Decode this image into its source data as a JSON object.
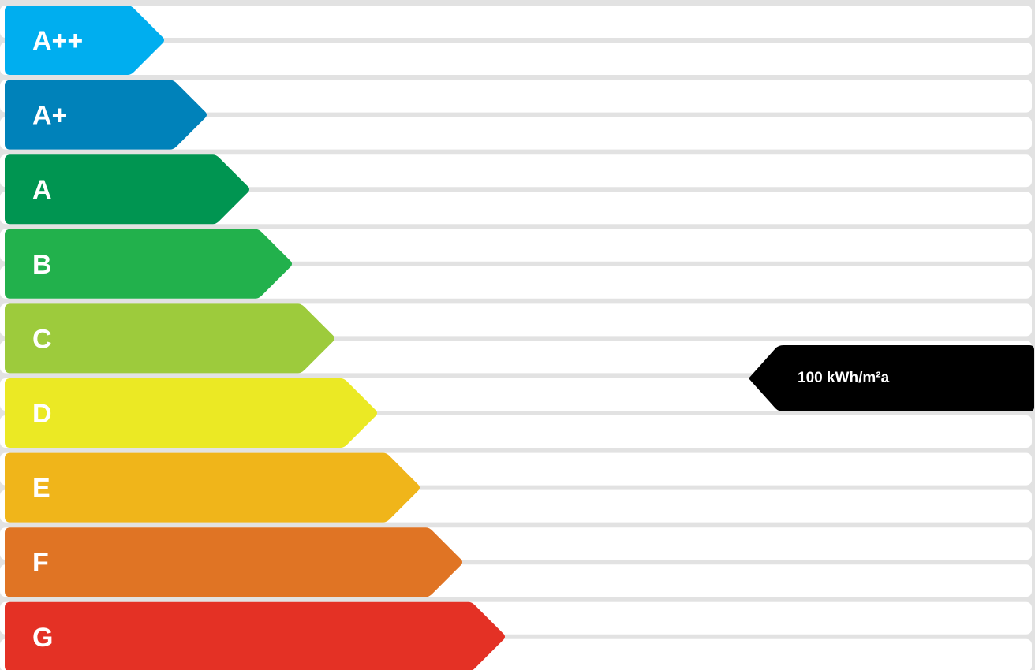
{
  "chart_data": {
    "type": "bar",
    "title": "",
    "categories": [
      "A++",
      "A+",
      "A",
      "B",
      "C",
      "D",
      "E",
      "F",
      "G"
    ],
    "colors": [
      "#00aeef",
      "#0082ba",
      "#009551",
      "#22b14c",
      "#9dcb3c",
      "#ebe924",
      "#f0b51a",
      "#e07424",
      "#e43125"
    ],
    "indicator": {
      "rating": "D",
      "value": 100,
      "unit": "kWh/m²a",
      "label": "100 kWh/m²a",
      "color": "#000000"
    }
  }
}
